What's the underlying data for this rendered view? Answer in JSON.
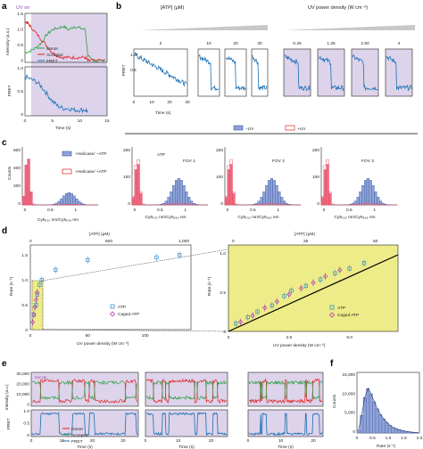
{
  "colors": {
    "uv_shade": "#ddd3ea",
    "donor": "#2e9e45",
    "acceptor": "#e02020",
    "fret": "#1a6fb5",
    "hist_blue": "#8fa3d8",
    "hist_red": "#e8506a",
    "fit_yellow": "#eeec88",
    "atp_marker": "#3a8fd0",
    "caged_marker": "#b03ab0"
  },
  "panels": {
    "a": {
      "label": "a",
      "uv_on": "UV on",
      "ylabel_top": "Intensity (a.u.)",
      "ylabel_bottom": "FRET",
      "xlabel": "Time (s)",
      "yticks_top": [
        "1.5",
        "1.0",
        "0.5",
        "0"
      ],
      "yticks_bottom": [
        "1.0",
        "0.5",
        "0"
      ],
      "xticks": [
        "0",
        "5",
        "10",
        "15"
      ],
      "legend": [
        "Donor",
        "Acceptor",
        "FRET"
      ]
    },
    "b": {
      "label": "b",
      "atp_header": "[ATP] (μM)",
      "uv_header": "UV power density (W cm⁻²)",
      "ylabel": "FRET",
      "xlabel": "Time (s)",
      "yticks": [
        "1.0",
        "0.5"
      ],
      "xticks": [
        "0",
        "10",
        "20",
        "30"
      ],
      "atp_values": [
        "2",
        "10",
        "20",
        "30"
      ],
      "uv_values": [
        "0.25",
        "1.25",
        "2.50",
        "4"
      ]
    },
    "c": {
      "label": "c",
      "legend_left": [
        "+Helicase/ −ATP",
        "+Helicase/ +ATP"
      ],
      "legend_right": [
        "−UV",
        "+UV"
      ],
      "ylabel": "Counts",
      "xlabel": "Cy5₅₃₂ nm/Cy5₆₃₈ nm",
      "xticks": [
        "0",
        "0.5",
        "1"
      ],
      "yticks_left": [
        "600",
        "400",
        "200",
        "0"
      ],
      "yticks_right": [
        "200",
        "100",
        "0"
      ],
      "fov_titles": [
        "ATP",
        "FOV 1",
        "FOV 2",
        "FOV 3"
      ]
    },
    "d": {
      "label": "d",
      "top_axis": "[ATP] (μM)",
      "top_ticks_left": [
        "0",
        "500",
        "1,000"
      ],
      "top_ticks_right": [
        "0",
        "25",
        "50"
      ],
      "ylabel": "Rate (s⁻¹)",
      "xlabel": "UV power density (W cm⁻²)",
      "xticks_left": [
        "0",
        "50",
        "100"
      ],
      "yticks_left": [
        "1.5",
        "1.0",
        "0.5",
        "0"
      ],
      "xticks_right": [
        "0",
        "2.5",
        "5.0"
      ],
      "yticks_right": [
        "1.0",
        "0.5",
        "0"
      ],
      "legend": [
        "ATP",
        "Caged ATP"
      ]
    },
    "e": {
      "label": "e",
      "uv_on": "UV on",
      "ylabel_top": "Intensity (a.u.)",
      "ylabel_bottom": "FRET",
      "yticks_top": [
        "30,000",
        "20,000",
        "10,000",
        "0"
      ],
      "yticks_bottom": [
        "1.0",
        "0.5",
        "0"
      ],
      "xlabel": "Time (s)",
      "xticks_1": [
        "0",
        "10",
        "20",
        "30"
      ],
      "xticks_2": [
        "0",
        "10",
        "20"
      ],
      "xticks_3": [
        "0",
        "10",
        "20"
      ],
      "legend": [
        "Donor",
        "Acceptor",
        "FRET"
      ]
    },
    "f": {
      "label": "f",
      "ylabel": "Counts",
      "xlabel": "Rate (s⁻¹)",
      "yticks": [
        "15,000",
        "10,000",
        "5,000",
        "0"
      ],
      "xticks": [
        "0",
        "0.5",
        "1.0",
        "1.5",
        "2.0"
      ]
    }
  },
  "chart_data": [
    {
      "type": "line",
      "panel": "a",
      "x_range": [
        0,
        15
      ],
      "series": [
        {
          "name": "Donor",
          "x": [
            0,
            1,
            2,
            3,
            4,
            5,
            6,
            7,
            8,
            9,
            10,
            11,
            11.5,
            12,
            13,
            15
          ],
          "y": [
            0.3,
            0.35,
            0.45,
            0.6,
            0.85,
            1.0,
            1.05,
            1.1,
            1.0,
            1.1,
            1.05,
            1.0,
            0.2,
            0.1,
            0.05,
            0.05
          ]
        },
        {
          "name": "Acceptor",
          "x": [
            0,
            0.5,
            1,
            2,
            3,
            4,
            5,
            6,
            7,
            8,
            9,
            10,
            11,
            11.5,
            12,
            15
          ],
          "y": [
            1.25,
            1.2,
            1.1,
            0.9,
            0.7,
            0.5,
            0.3,
            0.2,
            0.15,
            0.15,
            0.15,
            0.15,
            0.15,
            0.05,
            0.05,
            0.05
          ]
        },
        {
          "name": "FRET",
          "x": [
            0,
            1,
            2,
            3,
            4,
            5,
            6,
            7,
            8,
            9,
            10,
            11,
            11.5
          ],
          "y": [
            0.8,
            0.75,
            0.7,
            0.6,
            0.45,
            0.3,
            0.2,
            0.15,
            0.15,
            0.12,
            0.12,
            0.12,
            0.1
          ]
        }
      ]
    },
    {
      "type": "bar",
      "panel": "f",
      "x": [
        0.05,
        0.15,
        0.25,
        0.35,
        0.45,
        0.55,
        0.65,
        0.75,
        0.85,
        0.95,
        1.05,
        1.15,
        1.25,
        1.35,
        1.45,
        1.55,
        1.65,
        1.75,
        1.85,
        1.95
      ],
      "values": [
        800,
        5000,
        10000,
        12500,
        11000,
        8800,
        6800,
        5200,
        4000,
        3000,
        2200,
        1600,
        1200,
        900,
        700,
        500,
        350,
        250,
        150,
        100
      ],
      "ylim": [
        0,
        17000
      ],
      "xlim": [
        0,
        2.0
      ]
    },
    {
      "type": "scatter",
      "panel": "d-right",
      "series": [
        {
          "name": "ATP",
          "x": [
            0.3,
            0.8,
            1.2,
            1.8,
            2.3,
            2.6,
            3.2,
            3.8,
            4.4,
            5.0,
            5.6
          ],
          "y": [
            0.1,
            0.18,
            0.25,
            0.33,
            0.45,
            0.52,
            0.58,
            0.66,
            0.74,
            0.8,
            0.87
          ]
        },
        {
          "name": "Caged ATP",
          "x": [
            0.5,
            1.0,
            1.5,
            2.0,
            2.5,
            3.0,
            3.5,
            4.0,
            4.6
          ],
          "y": [
            0.12,
            0.2,
            0.3,
            0.38,
            0.47,
            0.55,
            0.62,
            0.7,
            0.78
          ]
        }
      ]
    },
    {
      "type": "scatter",
      "panel": "d-left",
      "series": [
        {
          "name": "ATP",
          "x": [
            3,
            5,
            6,
            8,
            10,
            22,
            50,
            110,
            130
          ],
          "y": [
            0.3,
            0.5,
            0.7,
            0.9,
            1.0,
            1.2,
            1.4,
            1.45,
            1.5
          ]
        },
        {
          "name": "Caged ATP",
          "x": [
            2,
            3,
            4,
            5,
            6
          ],
          "y": [
            0.15,
            0.3,
            0.45,
            0.6,
            0.75
          ]
        }
      ]
    }
  ]
}
